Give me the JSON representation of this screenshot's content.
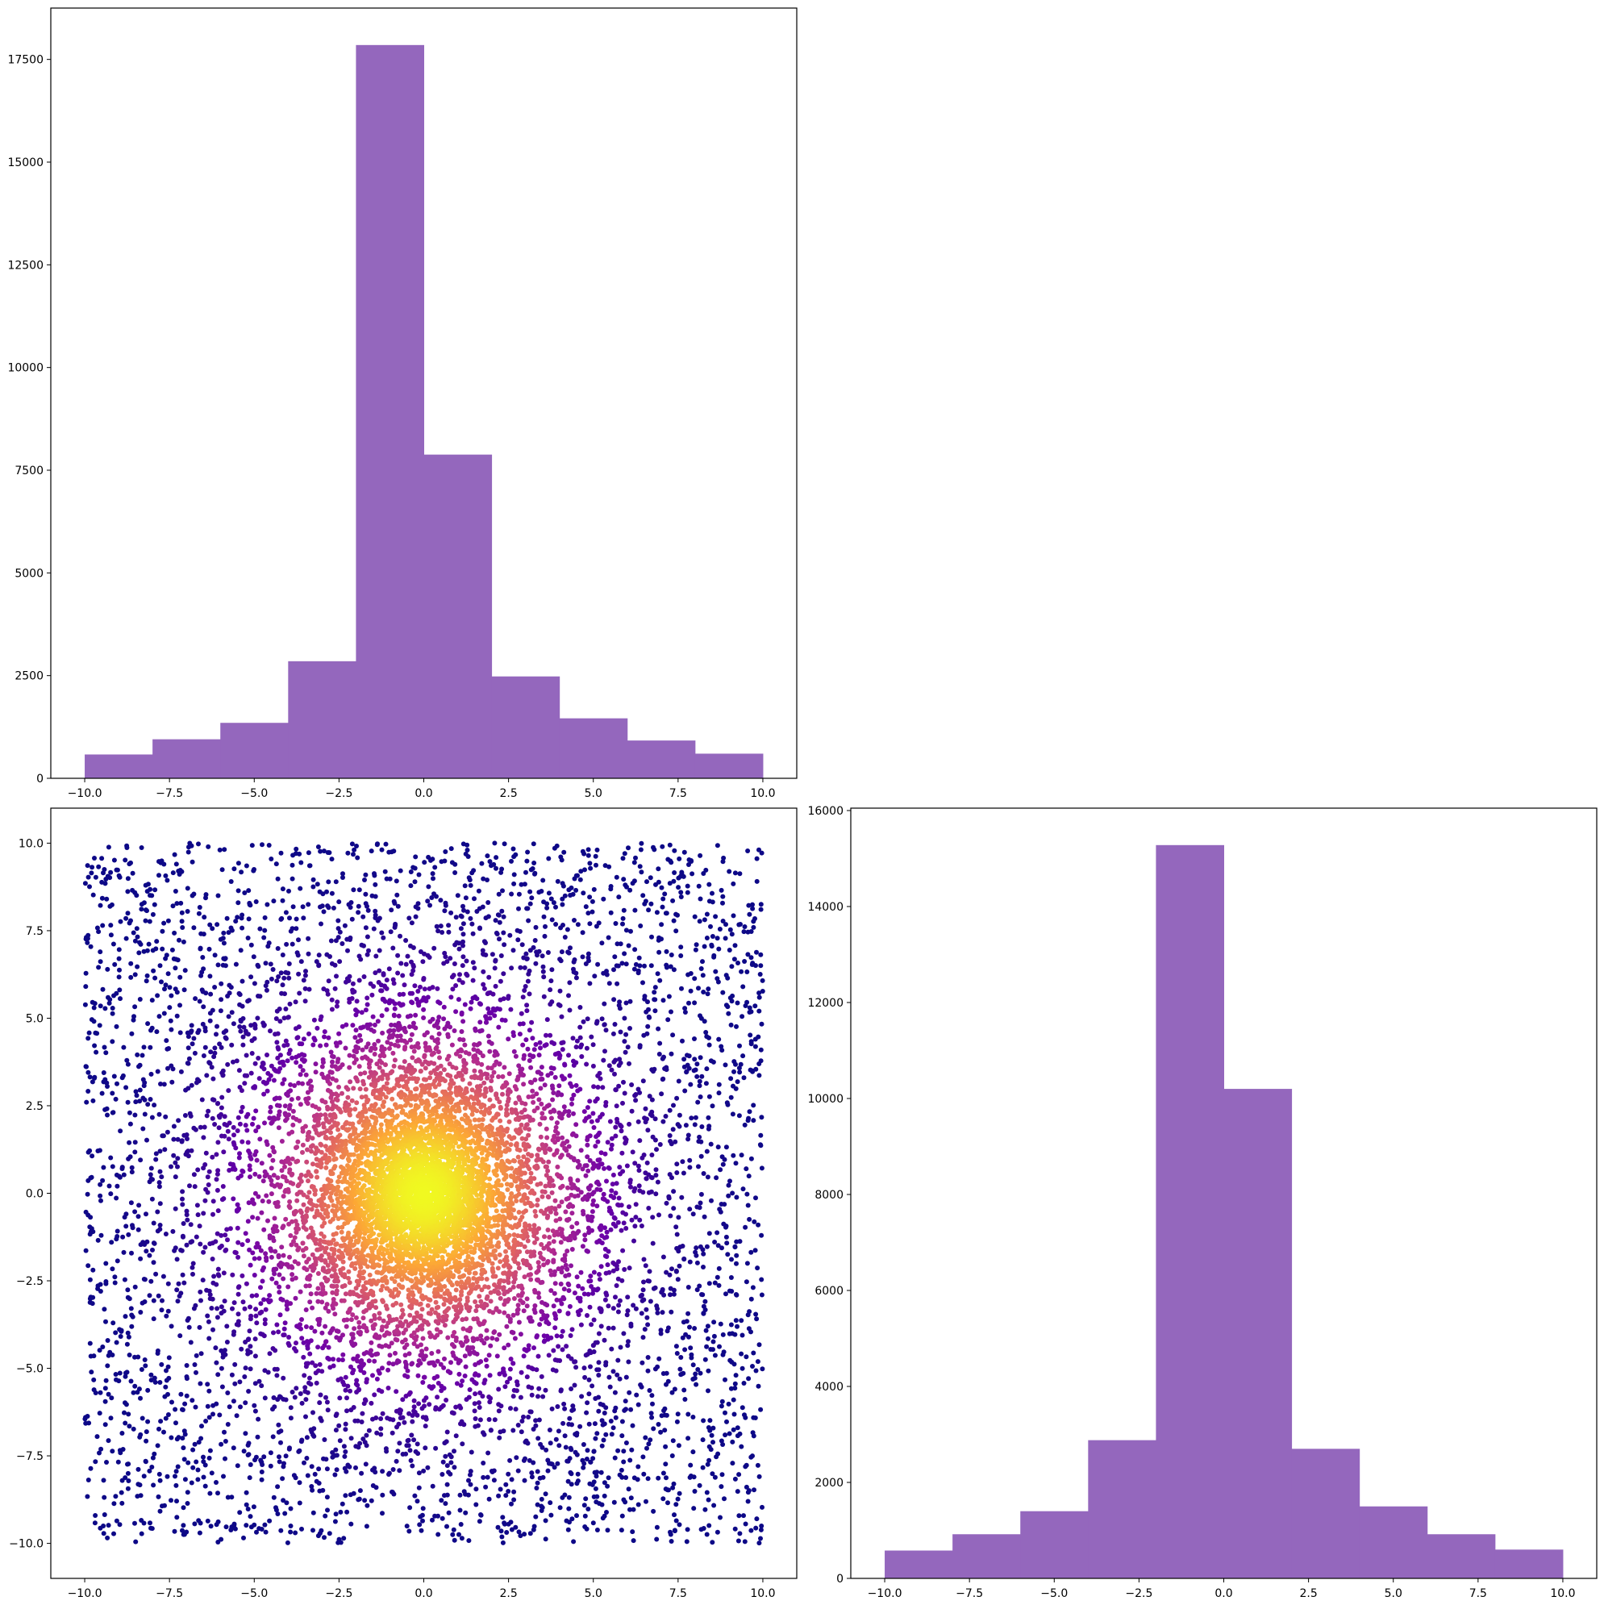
{
  "chart_data": [
    {
      "id": "hist_top_left",
      "type": "bar",
      "subtype": "histogram",
      "color": "#9467bd",
      "bin_edges": [
        -10,
        -8,
        -6,
        -4,
        -2,
        0,
        2,
        4,
        6,
        8,
        10
      ],
      "values": [
        580,
        950,
        1350,
        2850,
        17850,
        7880,
        2480,
        1460,
        920,
        600
      ],
      "xlim": [
        -11,
        11
      ],
      "ylim": [
        0,
        18750
      ],
      "xticks": [
        -10,
        -7.5,
        -5,
        -2.5,
        0,
        2.5,
        5,
        7.5,
        10
      ],
      "xtick_labels": [
        "−10.0",
        "−7.5",
        "−5.0",
        "−2.5",
        "0.0",
        "2.5",
        "5.0",
        "7.5",
        "10.0"
      ],
      "yticks": [
        0,
        2500,
        5000,
        7500,
        10000,
        12500,
        15000,
        17500
      ],
      "ytick_labels": [
        "0",
        "2500",
        "5000",
        "7500",
        "10000",
        "12500",
        "15000",
        "17500"
      ],
      "title": "",
      "xlabel": "",
      "ylabel": "",
      "grid": false
    },
    {
      "id": "scatter_bottom_left",
      "type": "scatter",
      "colormap": "plasma",
      "colormap_stops": [
        "#0d0887",
        "#6a00a8",
        "#b12a90",
        "#e16462",
        "#fca636",
        "#f0f921"
      ],
      "description_of_points": "about 10000 points in [-10,10] x [-10,10], dense near the origin, colored by point density (yellow at center, dark blue at edges)",
      "x_range": [
        -10,
        10
      ],
      "y_range": [
        -10,
        10
      ],
      "xlim": [
        -11,
        11
      ],
      "ylim": [
        -11,
        11
      ],
      "xticks": [
        -10,
        -7.5,
        -5,
        -2.5,
        0,
        2.5,
        5,
        7.5,
        10
      ],
      "xtick_labels": [
        "−10.0",
        "−7.5",
        "−5.0",
        "−2.5",
        "0.0",
        "2.5",
        "5.0",
        "7.5",
        "10.0"
      ],
      "yticks": [
        -10,
        -7.5,
        -5,
        -2.5,
        0,
        2.5,
        5,
        7.5,
        10
      ],
      "ytick_labels": [
        "−10.0",
        "−7.5",
        "−5.0",
        "−2.5",
        "0.0",
        "2.5",
        "5.0",
        "7.5",
        "10.0"
      ],
      "title": "",
      "xlabel": "",
      "ylabel": "",
      "grid": false
    },
    {
      "id": "hist_bottom_right",
      "type": "bar",
      "subtype": "histogram",
      "color": "#9467bd",
      "bin_edges": [
        -10,
        -8,
        -6,
        -4,
        -2,
        0,
        2,
        4,
        6,
        8,
        10
      ],
      "values": [
        580,
        920,
        1400,
        2880,
        15280,
        10200,
        2700,
        1500,
        920,
        600
      ],
      "xlim": [
        -11,
        11
      ],
      "ylim": [
        0,
        16050
      ],
      "xticks": [
        -10,
        -7.5,
        -5,
        -2.5,
        0,
        2.5,
        5,
        7.5,
        10
      ],
      "xtick_labels": [
        "−10.0",
        "−7.5",
        "−5.0",
        "−2.5",
        "0.0",
        "2.5",
        "5.0",
        "7.5",
        "10.0"
      ],
      "yticks": [
        0,
        2000,
        4000,
        6000,
        8000,
        10000,
        12000,
        14000,
        16000
      ],
      "ytick_labels": [
        "0",
        "2000",
        "4000",
        "6000",
        "8000",
        "10000",
        "12000",
        "14000",
        "16000"
      ],
      "title": "",
      "xlabel": "",
      "ylabel": "",
      "grid": false
    }
  ]
}
